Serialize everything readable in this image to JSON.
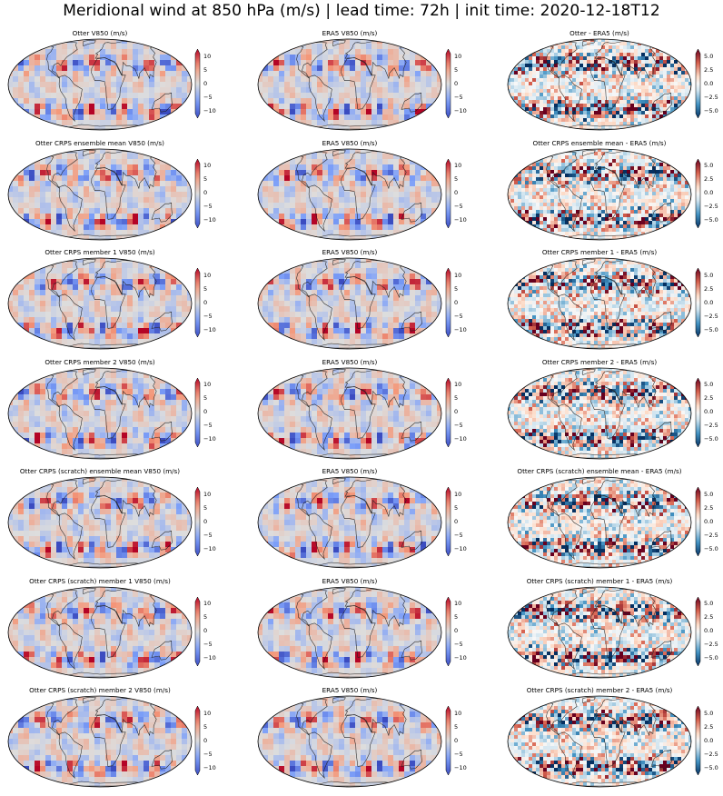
{
  "suptitle": "Meridional wind at 850 hPa (m/s) | lead time: 72h | init time: 2020-12-18T12",
  "colormaps": {
    "wind": {
      "name": "coolwarm",
      "ticks": [
        "10",
        "5",
        "0",
        "−5",
        "−10"
      ],
      "range": [
        -12,
        12
      ],
      "extend": "both"
    },
    "diff": {
      "name": "RdBu_r",
      "ticks": [
        "5.0",
        "2.5",
        "0.0",
        "−2.5",
        "−5.0"
      ],
      "range": [
        -5,
        5
      ],
      "extend": "both"
    }
  },
  "projection": "Robinson",
  "rows": [
    {
      "left": "Otter V850 (m/s)",
      "middle": "ERA5 V850 (m/s)",
      "right": "Otter - ERA5 (m/s)"
    },
    {
      "left": "Otter CRPS ensemble mean V850 (m/s)",
      "middle": "ERA5 V850 (m/s)",
      "right": "Otter CRPS ensemble mean - ERA5 (m/s)"
    },
    {
      "left": "Otter CRPS member 1 V850 (m/s)",
      "middle": "ERA5 V850 (m/s)",
      "right": "Otter CRPS member 1 - ERA5 (m/s)"
    },
    {
      "left": "Otter CRPS member 2 V850 (m/s)",
      "middle": "ERA5 V850 (m/s)",
      "right": "Otter CRPS member 2 - ERA5 (m/s)"
    },
    {
      "left": "Otter CRPS (scratch) ensemble mean V850 (m/s)",
      "middle": "ERA5 V850 (m/s)",
      "right": "Otter CRPS (scratch) ensemble mean - ERA5 (m/s)"
    },
    {
      "left": "Otter CRPS (scratch) member 1 V850 (m/s)",
      "middle": "ERA5 V850 (m/s)",
      "right": "Otter CRPS (scratch) member 1 - ERA5 (m/s)"
    },
    {
      "left": "Otter CRPS (scratch) member 2 V850 (m/s)",
      "middle": "ERA5 V850 (m/s)",
      "right": "Otter CRPS (scratch) member 2 - ERA5 (m/s)"
    }
  ]
}
